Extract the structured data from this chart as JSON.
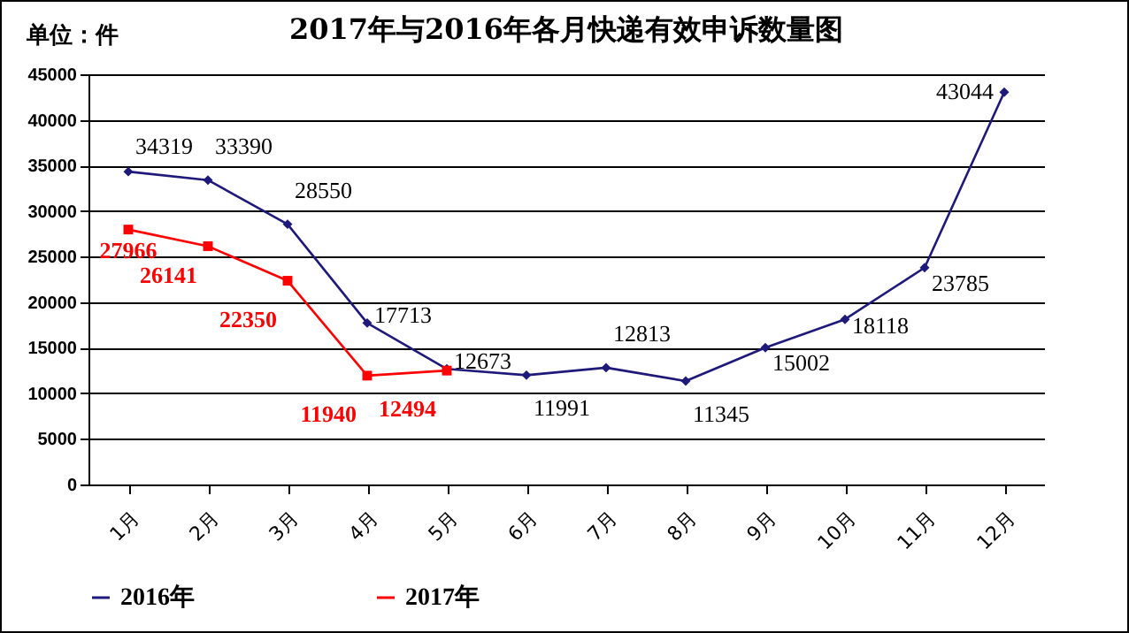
{
  "chart_data": {
    "type": "line",
    "title": "2017年与2016年各月快递有效申诉数量图",
    "annotations": [
      "单位：件"
    ],
    "categories": [
      "1月",
      "2月",
      "3月",
      "4月",
      "5月",
      "6月",
      "7月",
      "8月",
      "9月",
      "10月",
      "11月",
      "12月"
    ],
    "series": [
      {
        "name": "2016年",
        "color": "#1f1a7a",
        "marker": "diamond",
        "values": [
          34319,
          33390,
          28550,
          17713,
          12673,
          11991,
          12813,
          11345,
          15002,
          18118,
          23785,
          43044
        ]
      },
      {
        "name": "2017年",
        "color": "#ff0000",
        "marker": "square",
        "values": [
          27966,
          26141,
          22350,
          11940,
          12494,
          null,
          null,
          null,
          null,
          null,
          null,
          null
        ]
      }
    ],
    "ylim": [
      0,
      45000
    ],
    "yticks": [
      0,
      5000,
      10000,
      15000,
      20000,
      25000,
      30000,
      35000,
      40000,
      45000
    ],
    "grid": "y",
    "legend": "bottom",
    "data_labels": true
  }
}
